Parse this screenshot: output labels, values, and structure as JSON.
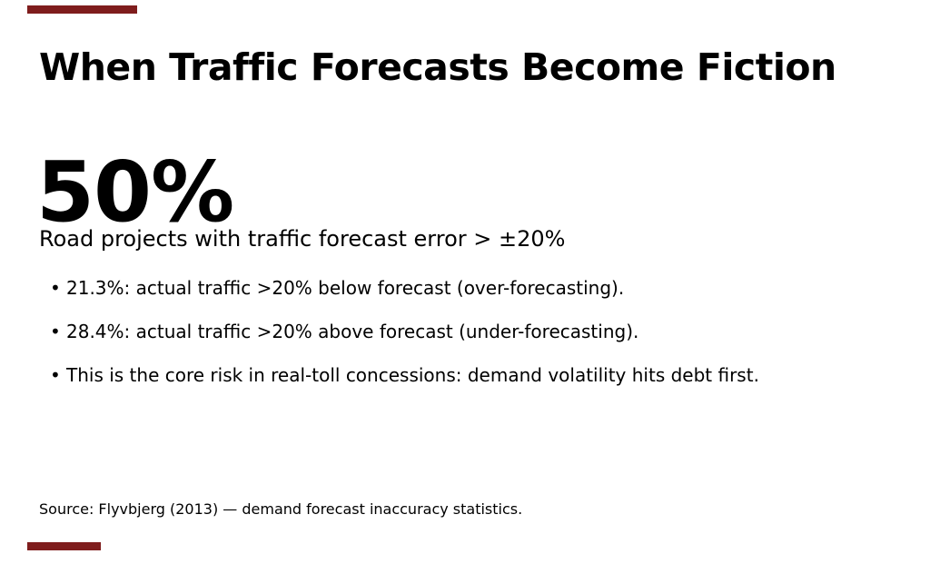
{
  "slide": {
    "accent_color": "#7f1d1d",
    "title": "When Traffic Forecasts Become Fiction",
    "stat": {
      "value": "50%",
      "caption": "Road projects with traffic forecast error > ±20%"
    },
    "bullet_glyph": "•",
    "bullets": [
      "21.3%: actual traffic >20% below forecast (over-forecasting).",
      "28.4%: actual traffic >20% above forecast (under-forecasting).",
      "This is the core risk in real-toll concessions: demand volatility hits debt first."
    ],
    "source": "Source: Flyvbjerg (2013) — demand forecast inaccuracy statistics."
  }
}
